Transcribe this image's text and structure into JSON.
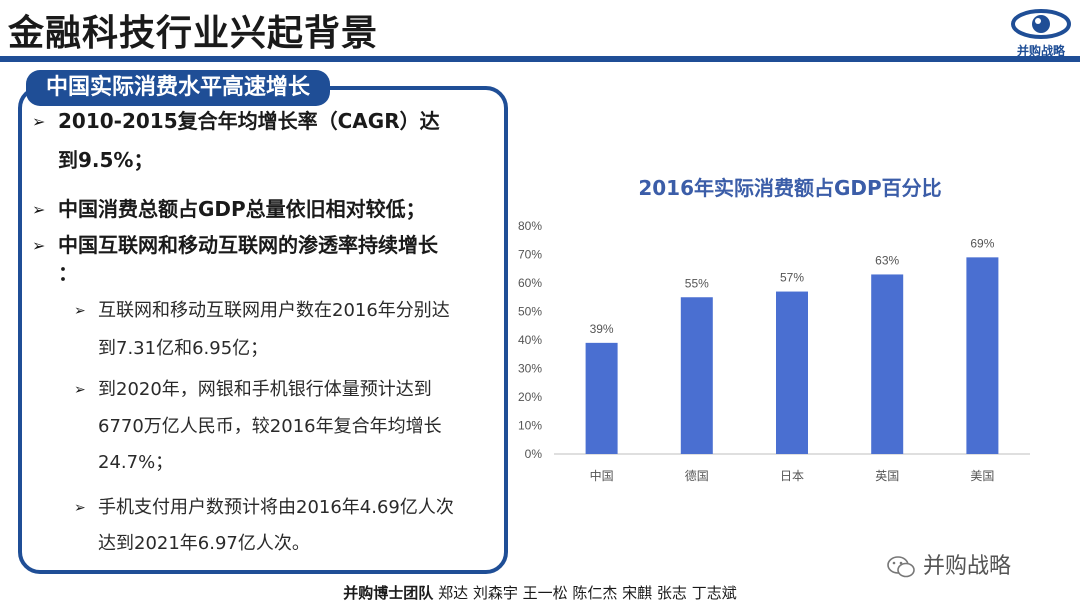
{
  "slide": {
    "title": "金融科技行业兴起背景",
    "logo_text": "并购战略",
    "panel_tab": "中国实际消费水平高速增长"
  },
  "bullets": [
    {
      "text_line1": "2010-2015复合年均增长率（CAGR）达",
      "text_line2": "到9.5%；"
    },
    {
      "text_line1": "中国消费总额占GDP总量依旧相对较低；"
    },
    {
      "text_line1": "中国互联网和移动互联网的渗透率持续增长",
      "text_line2": "："
    }
  ],
  "sub_bullets": [
    {
      "line1": "互联网和移动互联网用户数在2016年分别达",
      "line2": "到7.31亿和6.95亿；"
    },
    {
      "line1": "到2020年，网银和手机银行体量预计达到",
      "line2": "6770万亿人民币，较2016年复合年均增长",
      "line3": "24.7%；"
    },
    {
      "line1": "手机支付用户数预计将由2016年4.69亿人次",
      "line2": "达到2021年6.97亿人次。"
    }
  ],
  "icons": {
    "bullet": "arrow-bullet-icon",
    "logo": "eye-logo-icon",
    "wechat": "wechat-icon"
  },
  "colors": {
    "accent": "#1f4e96",
    "bar": "#4a6fd1",
    "chart_title": "#3b5da8"
  },
  "chart_data": {
    "type": "bar",
    "title": "2016年实际消费额占GDP百分比",
    "categories": [
      "中国",
      "德国",
      "日本",
      "英国",
      "美国"
    ],
    "values": [
      39,
      55,
      57,
      63,
      69
    ],
    "data_labels": [
      "39%",
      "55%",
      "57%",
      "63%",
      "69%"
    ],
    "y_ticks": [
      "0%",
      "10%",
      "20%",
      "30%",
      "40%",
      "50%",
      "60%",
      "70%",
      "80%"
    ],
    "ylim": [
      0,
      80
    ],
    "grid": false
  },
  "footer": {
    "team": "并购博士团队",
    "members": "郑达 刘森宇 王一松 陈仁杰 宋麒 张志 丁志斌"
  },
  "watermark": "并购战略"
}
